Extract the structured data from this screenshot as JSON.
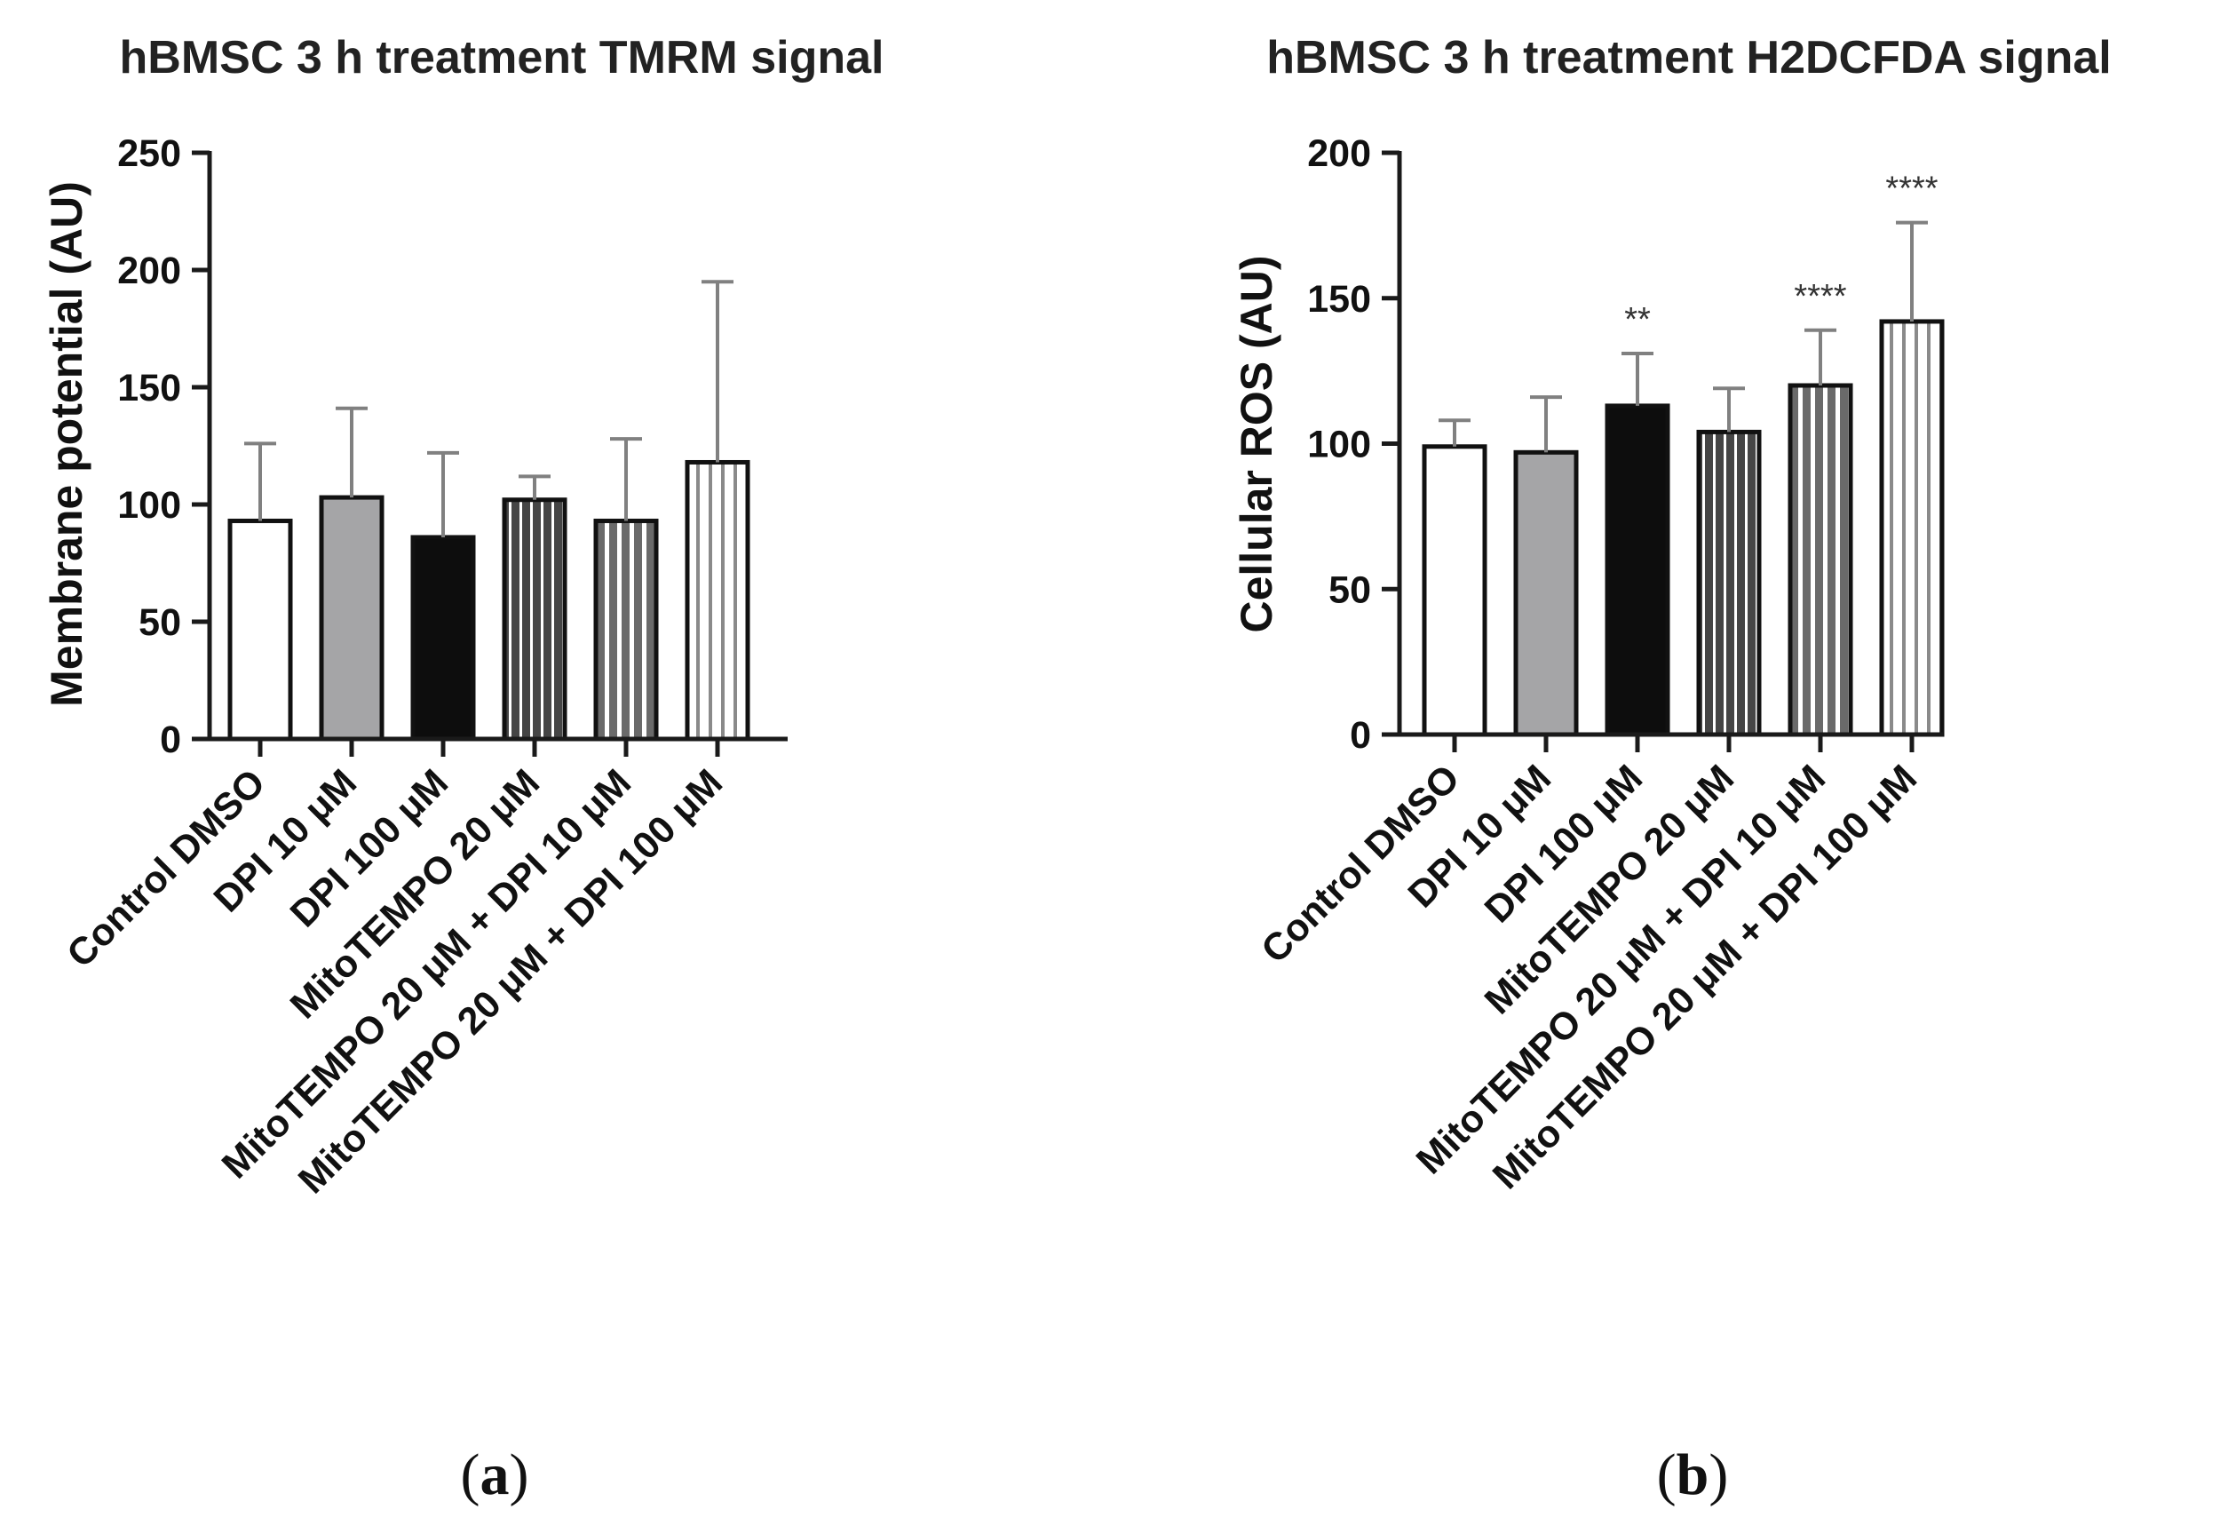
{
  "colors": {
    "axis": "#1a1a1a",
    "bar_stroke": "#111111",
    "error_bar": "#808080",
    "white": "#ffffff",
    "gray": "#a5a5a7",
    "black": "#0d0d0d",
    "dark_stripe": "#4a4a4a",
    "mid_stripe": "#6f6f6f",
    "light_stripe": "#8c8c8c"
  },
  "chart_data": [
    {
      "id": "a",
      "type": "bar",
      "title": "hBMSC 3 h treatment TMRM signal",
      "xlabel": "",
      "ylabel": "Membrane potential (AU)",
      "ylim": [
        0,
        250
      ],
      "yticks": [
        0,
        50,
        100,
        150,
        200,
        250
      ],
      "grid": false,
      "categories": [
        "Control DMSO",
        "DPI 10 μM",
        "DPI 100 μM",
        "MitoTEMPO 20 μM",
        "MitoTEMPO 20 μM + DPI 10 μM",
        "MitoTEMPO 20 μM + DPI 100 μM"
      ],
      "values": [
        93,
        103,
        86,
        102,
        93,
        118
      ],
      "error_upper": [
        126,
        141,
        122,
        112,
        128,
        195
      ],
      "significance": [
        "",
        "",
        "",
        "",
        "",
        ""
      ],
      "fills": [
        "white",
        "gray",
        "black",
        "dark-stripes",
        "mid-stripes",
        "light-stripes"
      ],
      "panel_label": "a"
    },
    {
      "id": "b",
      "type": "bar",
      "title": "hBMSC 3 h treatment H2DCFDA signal",
      "xlabel": "",
      "ylabel": "Cellular ROS (AU)",
      "ylim": [
        0,
        200
      ],
      "yticks": [
        0,
        50,
        100,
        150,
        200
      ],
      "grid": false,
      "categories": [
        "Control DMSO",
        "DPI 10 μM",
        "DPI 100 μM",
        "MitoTEMPO 20 μM",
        "MitoTEMPO 20 μM + DPI 10 μM",
        "MitoTEMPO 20 μM + DPI 100 μM"
      ],
      "values": [
        99,
        97,
        113,
        104,
        120,
        142
      ],
      "error_upper": [
        108,
        116,
        131,
        119,
        139,
        176
      ],
      "significance": [
        "",
        "",
        "**",
        "",
        "****",
        "****"
      ],
      "fills": [
        "white",
        "gray",
        "black",
        "dark-stripes",
        "mid-stripes",
        "light-stripes"
      ],
      "panel_label": "b"
    }
  ]
}
